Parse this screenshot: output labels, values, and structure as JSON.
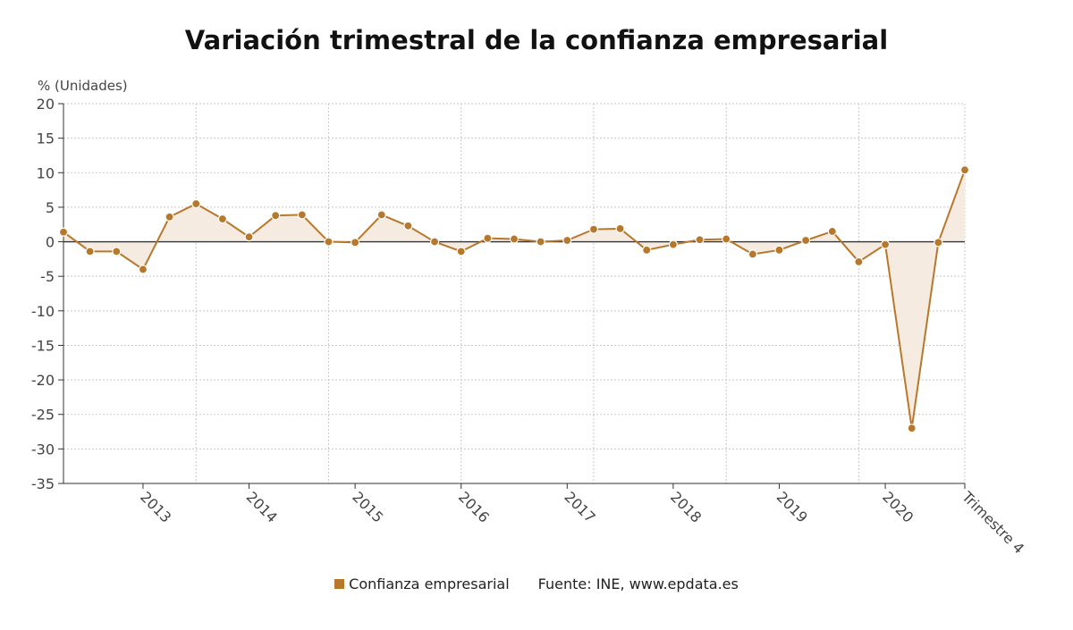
{
  "colors": {
    "series": "#b8782c",
    "fill": "#f6ebe0",
    "grid": "#c8c8c8",
    "axis": "#333333",
    "text": "#444444"
  },
  "legend": {
    "series_label": "Confianza empresarial",
    "source": "Fuente: INE, www.epdata.es"
  },
  "chart_data": {
    "type": "area",
    "title": "Variación trimestral de la confianza empresarial",
    "ylabel": "% (Unidades)",
    "xlabel": "",
    "ylim": [
      -35,
      20
    ],
    "yticks": [
      20,
      15,
      10,
      5,
      0,
      -5,
      -10,
      -15,
      -20,
      -25,
      -30,
      -35
    ],
    "grid": true,
    "legend_position": "bottom",
    "x_tick_labels": [
      {
        "label": "2013",
        "index": 3
      },
      {
        "label": "2014",
        "index": 7
      },
      {
        "label": "2015",
        "index": 11
      },
      {
        "label": "2016",
        "index": 15
      },
      {
        "label": "2017",
        "index": 19
      },
      {
        "label": "2018",
        "index": 23
      },
      {
        "label": "2019",
        "index": 27
      },
      {
        "label": "2020",
        "index": 31
      },
      {
        "label": "Trimestre 4",
        "index": 34
      }
    ],
    "vertical_gridlines_at": [
      5,
      10,
      15,
      20,
      25,
      30,
      34
    ],
    "series": [
      {
        "name": "Confianza empresarial",
        "values": [
          1.4,
          -1.4,
          -1.4,
          -4.0,
          3.6,
          5.5,
          3.3,
          0.7,
          3.8,
          3.9,
          0.0,
          -0.1,
          3.9,
          2.3,
          0.0,
          -1.4,
          0.5,
          0.4,
          0.0,
          0.2,
          1.8,
          1.9,
          -1.2,
          -0.4,
          0.3,
          0.4,
          -1.8,
          -1.2,
          0.2,
          1.5,
          -2.9,
          -0.4,
          -27.0,
          -0.1,
          10.4
        ]
      }
    ]
  }
}
